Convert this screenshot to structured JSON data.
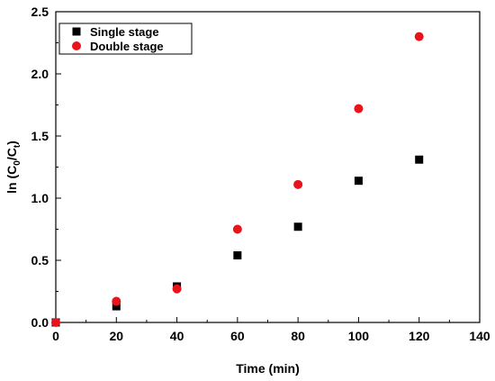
{
  "chart_data": {
    "type": "scatter",
    "xlabel": "Time (min)",
    "ylabel": {
      "prefix": "ln (C",
      "sub0": "0",
      "mid": "/C",
      "subt": "t",
      "suffix": ")"
    },
    "xlim": [
      0,
      140
    ],
    "ylim": [
      0,
      2.5
    ],
    "xticks": [
      "0",
      "20",
      "40",
      "60",
      "80",
      "100",
      "120",
      "140"
    ],
    "yticks": [
      "0.0",
      "0.5",
      "1.0",
      "1.5",
      "2.0",
      "2.5"
    ],
    "grid": false,
    "legend_position": "top-left",
    "series": [
      {
        "name": "Single stage",
        "marker": "square",
        "color": "#000000",
        "x": [
          0,
          20,
          40,
          60,
          80,
          100,
          120
        ],
        "y": [
          0.0,
          0.13,
          0.29,
          0.54,
          0.77,
          1.14,
          1.31
        ]
      },
      {
        "name": "Double stage",
        "marker": "circle",
        "color": "#e8141b",
        "x": [
          0,
          20,
          40,
          60,
          80,
          100,
          120
        ],
        "y": [
          0.0,
          0.17,
          0.27,
          0.75,
          1.11,
          1.72,
          2.3
        ]
      }
    ]
  }
}
